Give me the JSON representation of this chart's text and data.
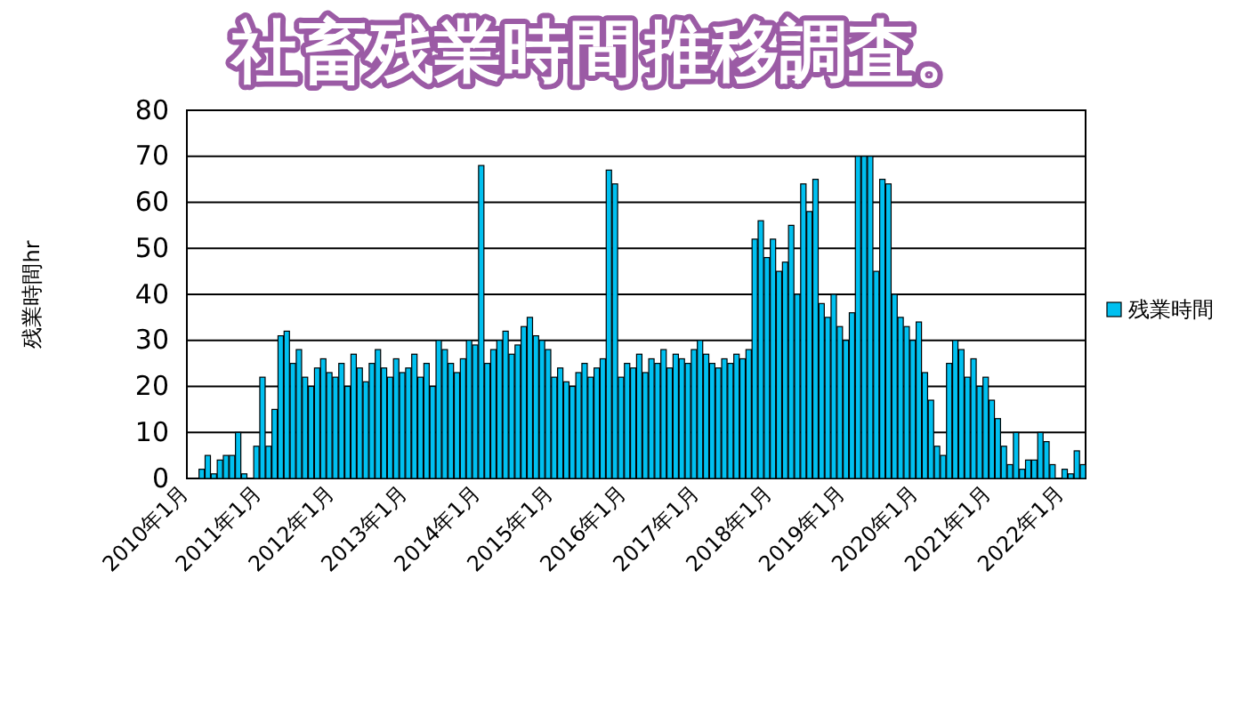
{
  "chart_data": {
    "type": "bar",
    "title": "社畜残業時間",
    "subtitle": "推移調査。",
    "ylabel": "残業時間hr",
    "categories": [
      "2010年1月",
      null,
      null,
      null,
      null,
      null,
      null,
      null,
      null,
      null,
      null,
      null,
      "2011年1月",
      null,
      null,
      null,
      null,
      null,
      null,
      null,
      null,
      null,
      null,
      null,
      "2012年1月",
      null,
      null,
      null,
      null,
      null,
      null,
      null,
      null,
      null,
      null,
      null,
      "2013年1月",
      null,
      null,
      null,
      null,
      null,
      null,
      null,
      null,
      null,
      null,
      null,
      "2014年1月",
      null,
      null,
      null,
      null,
      null,
      null,
      null,
      null,
      null,
      null,
      null,
      "2015年1月",
      null,
      null,
      null,
      null,
      null,
      null,
      null,
      null,
      null,
      null,
      null,
      "2016年1月",
      null,
      null,
      null,
      null,
      null,
      null,
      null,
      null,
      null,
      null,
      null,
      "2017年1月",
      null,
      null,
      null,
      null,
      null,
      null,
      null,
      null,
      null,
      null,
      null,
      "2018年1月",
      null,
      null,
      null,
      null,
      null,
      null,
      null,
      null,
      null,
      null,
      null,
      "2019年1月",
      null,
      null,
      null,
      null,
      null,
      null,
      null,
      null,
      null,
      null,
      null,
      "2020年1月",
      null,
      null,
      null,
      null,
      null,
      null,
      null,
      null,
      null,
      null,
      null,
      "2021年1月",
      null,
      null,
      null,
      null,
      null,
      null,
      null,
      null,
      null,
      null,
      null,
      "2022年1月",
      null,
      null,
      null
    ],
    "series": [
      {
        "name": "残業時間",
        "color": "#00c0f0",
        "values": [
          0,
          0,
          2,
          5,
          1,
          4,
          5,
          5,
          10,
          1,
          0,
          7,
          22,
          7,
          15,
          31,
          32,
          25,
          28,
          22,
          20,
          24,
          26,
          23,
          22,
          25,
          20,
          27,
          24,
          21,
          25,
          28,
          24,
          22,
          26,
          23,
          24,
          27,
          22,
          25,
          20,
          30,
          28,
          25,
          23,
          26,
          30,
          29,
          68,
          25,
          28,
          30,
          32,
          27,
          29,
          33,
          35,
          31,
          30,
          28,
          22,
          24,
          21,
          20,
          23,
          25,
          22,
          24,
          26,
          67,
          64,
          22,
          25,
          24,
          27,
          23,
          26,
          25,
          28,
          24,
          27,
          26,
          25,
          28,
          30,
          27,
          25,
          24,
          26,
          25,
          27,
          26,
          28,
          52,
          56,
          48,
          52,
          45,
          47,
          55,
          40,
          64,
          58,
          65,
          38,
          35,
          40,
          33,
          30,
          36,
          70,
          70,
          70,
          45,
          65,
          64,
          40,
          35,
          33,
          30,
          34,
          23,
          17,
          7,
          5,
          25,
          30,
          28,
          22,
          26,
          20,
          22,
          17,
          13,
          7,
          3,
          10,
          2,
          4,
          4,
          10,
          8,
          3,
          0,
          2,
          1,
          6,
          3
        ]
      }
    ],
    "ylim": [
      0,
      80
    ],
    "yticks": [
      0,
      10,
      20,
      30,
      40,
      50,
      60,
      70,
      80
    ],
    "grid": "y",
    "legend": "right"
  }
}
